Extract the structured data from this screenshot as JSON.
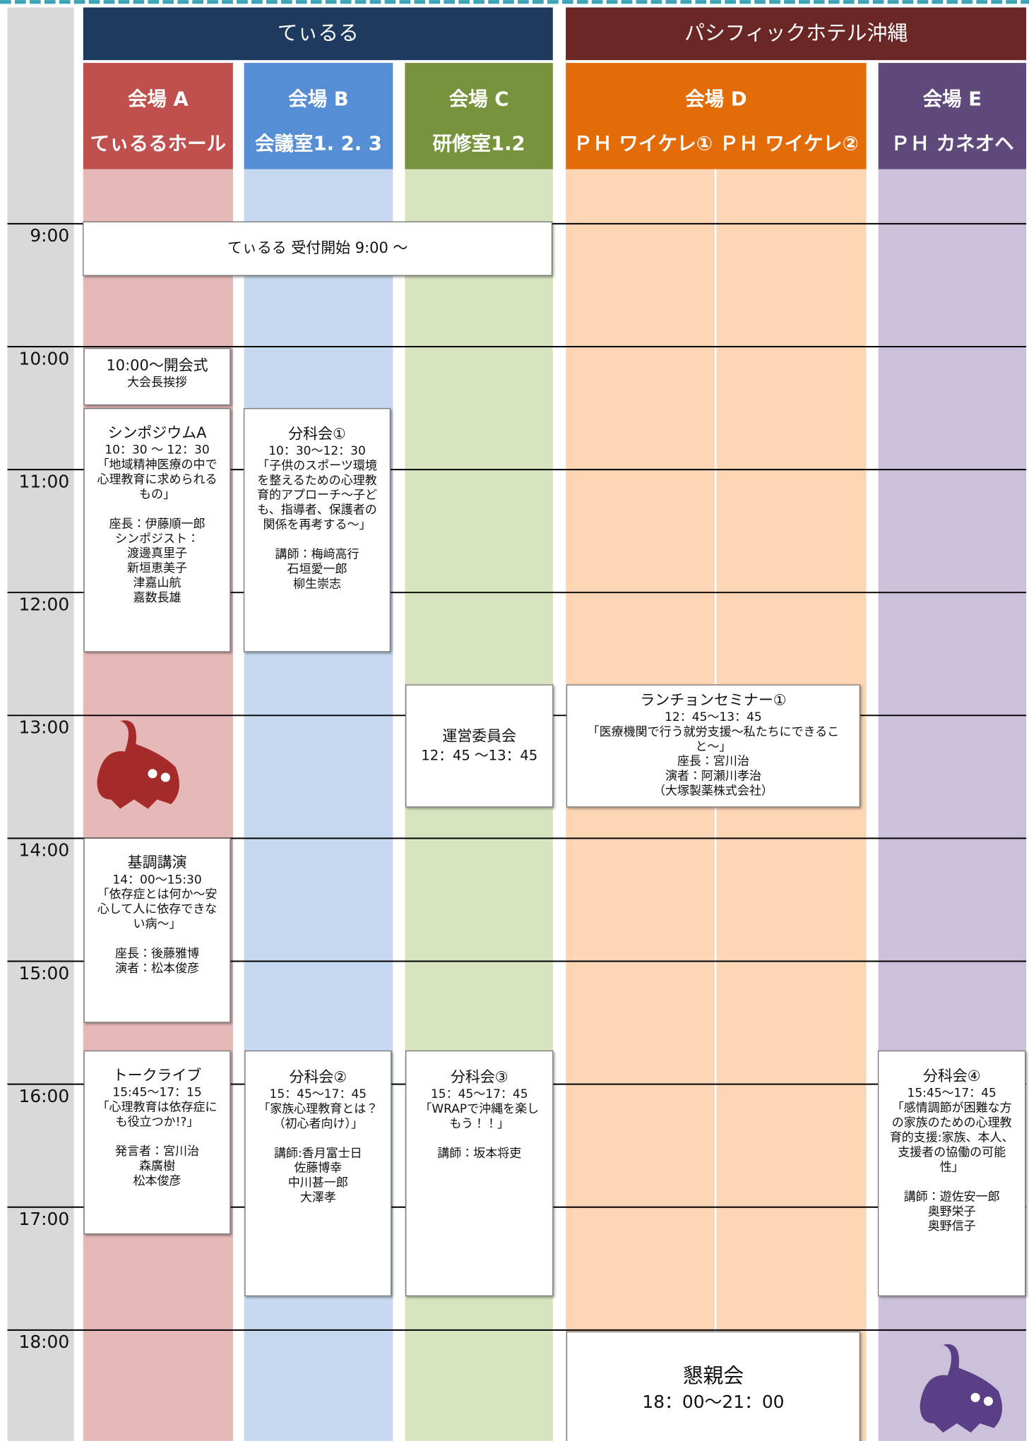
{
  "header": {
    "venues": [
      {
        "name": "てぃるる"
      },
      {
        "name": "パシフィックホテル沖縄"
      }
    ],
    "rooms": [
      {
        "name": "会場 A",
        "place": "てぃるるホール"
      },
      {
        "name": "会場 B",
        "place": "会議室1. 2. 3"
      },
      {
        "name": "会場 C",
        "place": "研修室1.2"
      },
      {
        "name": "会場 D",
        "place": "ＰＨ ワイケレ① ＰＨ ワイケレ②"
      },
      {
        "name": "会場 E",
        "place": "ＰＨ カネオヘ"
      }
    ]
  },
  "times": [
    "9:00",
    "10:00",
    "11:00",
    "12:00",
    "13:00",
    "14:00",
    "15:00",
    "16:00",
    "17:00",
    "18:00"
  ],
  "events": [
    {
      "blocks": [
        [
          "てぃるる 受付開始 9:00 ～"
        ]
      ]
    },
    {
      "blocks": [
        [
          "10:00～開会式",
          "大会長挨拶"
        ]
      ]
    },
    {
      "blocks": [
        [
          "シンポジウムA",
          "10：30 ～ 12：30",
          "「地域精神医療の中で",
          "心理教育に求められる",
          "もの」"
        ],
        [
          "座長：伊藤順一郎",
          "シンポジスト：",
          "渡邊真里子",
          "新垣恵美子",
          "津嘉山航",
          "嘉数長雄"
        ]
      ]
    },
    {
      "blocks": [
        [
          "分科会①",
          "10：30～12：30",
          "「子供のスポーツ環境",
          "を整えるための心理教",
          "育的アプローチ～子ど",
          "も、指導者、保護者の",
          "関係を再考する～」"
        ],
        [
          "講師：梅﨑高行",
          "石垣愛一郎",
          "柳生崇志"
        ]
      ]
    },
    {
      "blocks": [
        [
          "運営委員会",
          "12：45 ～13：45"
        ]
      ]
    },
    {
      "blocks": [
        [
          "ランチョンセミナー①",
          "12：45～13：45",
          "「医療機関で行う就労支援～私たちにできるこ",
          "と～」",
          "座長：宮川治",
          "演者：阿瀬川孝治",
          "（大塚製薬株式会社）"
        ]
      ]
    },
    {
      "blocks": [
        [
          "基調講演",
          "14：00～15:30",
          "「依存症とは何か～安",
          "心して人に依存できな",
          "い病～」"
        ],
        [
          "座長：後藤雅博",
          "演者：松本俊彦"
        ]
      ]
    },
    {
      "blocks": [
        [
          "トークライブ",
          "15:45～17：15",
          "「心理教育は依存症に",
          "も役立つか!?」"
        ],
        [
          "発言者：宮川治",
          "森廣樹",
          "松本俊彦"
        ]
      ]
    },
    {
      "blocks": [
        [
          "分科会②",
          "15：45～17：45",
          "「家族心理教育とは？",
          "（初心者向け）」"
        ],
        [
          "講師:香月富士日",
          "佐藤博幸",
          "中川甚一郎",
          "大澤孝"
        ]
      ]
    },
    {
      "blocks": [
        [
          "分科会③",
          "15：45～17：45",
          "「WRAPで沖縄を楽し",
          "もう！！」"
        ],
        [
          "講師：坂本将吏"
        ]
      ]
    },
    {
      "blocks": [
        [
          "分科会④",
          "15:45～17：45",
          "「感情調節が困難な方",
          "の家族のための心理教",
          "育的支援:家族、本人、",
          "支援者の協働の可能",
          "性」"
        ],
        [
          "講師：遊佐安一郎",
          "奥野栄子",
          "奥野信子"
        ]
      ]
    },
    {
      "blocks": [
        [
          "懇親会",
          "18：00～21：00"
        ]
      ]
    }
  ]
}
